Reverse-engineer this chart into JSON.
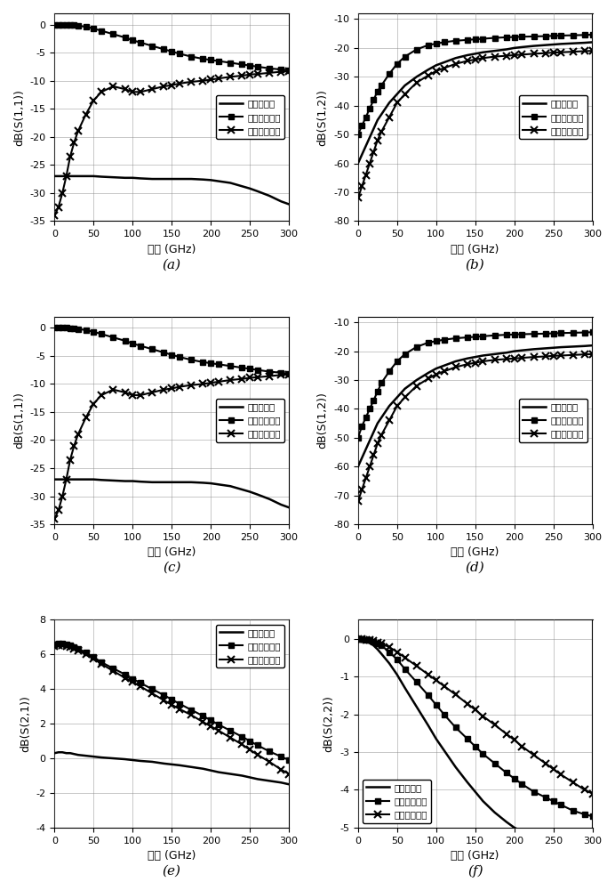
{
  "freq_dense": [
    0,
    5,
    10,
    15,
    20,
    25,
    30,
    40,
    50,
    60,
    75,
    90,
    100,
    110,
    125,
    140,
    150,
    160,
    175,
    190,
    200,
    210,
    225,
    240,
    250,
    260,
    275,
    290,
    300
  ],
  "panels": [
    {
      "ylabel": "dB(S(1,1))",
      "label": "(a)",
      "ylim": [
        -35,
        2
      ],
      "yticks": [
        0,
        -5,
        -10,
        -15,
        -20,
        -25,
        -30,
        -35
      ],
      "legend_loc": "center right",
      "lines": [
        {
          "name": "本专利结构",
          "marker": null,
          "y": [
            -27.0,
            -27.0,
            -27.0,
            -27.0,
            -27.0,
            -27.0,
            -27.0,
            -27.0,
            -27.0,
            -27.1,
            -27.2,
            -27.3,
            -27.3,
            -27.4,
            -27.5,
            -27.5,
            -27.5,
            -27.5,
            -27.5,
            -27.6,
            -27.7,
            -27.9,
            -28.2,
            -28.8,
            -29.2,
            -29.7,
            -30.5,
            -31.5,
            -32.0
          ]
        },
        {
          "name": "传统共射结构",
          "marker": "s",
          "y": [
            0.0,
            0.0,
            0.0,
            0.0,
            -0.05,
            -0.1,
            -0.2,
            -0.4,
            -0.7,
            -1.1,
            -1.7,
            -2.3,
            -2.8,
            -3.2,
            -3.8,
            -4.4,
            -4.8,
            -5.2,
            -5.7,
            -6.1,
            -6.3,
            -6.5,
            -6.8,
            -7.1,
            -7.3,
            -7.5,
            -7.8,
            -8.0,
            -8.2
          ]
        },
        {
          "name": "传统共基结构",
          "marker": "x",
          "y": [
            -34.0,
            -32.5,
            -30.0,
            -27.0,
            -23.5,
            -21.0,
            -19.0,
            -16.0,
            -13.5,
            -12.0,
            -11.0,
            -11.5,
            -12.0,
            -12.0,
            -11.5,
            -11.0,
            -10.8,
            -10.5,
            -10.2,
            -10.0,
            -9.8,
            -9.6,
            -9.3,
            -9.1,
            -8.9,
            -8.8,
            -8.6,
            -8.4,
            -8.3
          ]
        }
      ]
    },
    {
      "ylabel": "dB(S(1,2))",
      "label": "(b)",
      "ylim": [
        -80,
        -8
      ],
      "yticks": [
        -10,
        -20,
        -30,
        -40,
        -50,
        -60,
        -70,
        -80
      ],
      "legend_loc": "center right",
      "lines": [
        {
          "name": "本专利结构",
          "marker": null,
          "y": [
            -60,
            -57,
            -54,
            -51,
            -48,
            -45,
            -43,
            -39,
            -36,
            -33,
            -30,
            -27.5,
            -26,
            -25,
            -23.5,
            -22.5,
            -22,
            -21.5,
            -21,
            -20.5,
            -20,
            -19.7,
            -19.3,
            -19.0,
            -18.8,
            -18.6,
            -18.4,
            -18.2,
            -18.0
          ]
        },
        {
          "name": "传统共射结构",
          "marker": "s",
          "y": [
            -50,
            -47,
            -44,
            -41,
            -38,
            -35,
            -33,
            -29,
            -25.5,
            -23,
            -20.5,
            -19,
            -18.5,
            -18,
            -17.5,
            -17.2,
            -17,
            -16.8,
            -16.5,
            -16.3,
            -16.2,
            -16.1,
            -16.0,
            -15.9,
            -15.8,
            -15.7,
            -15.6,
            -15.5,
            -15.4
          ]
        },
        {
          "name": "传统共基结构",
          "marker": "x",
          "y": [
            -72,
            -68,
            -64,
            -60,
            -56,
            -52,
            -49,
            -44,
            -39,
            -36,
            -32,
            -29.5,
            -28,
            -27,
            -25.5,
            -24.5,
            -24,
            -23.5,
            -23.0,
            -22.7,
            -22.5,
            -22.3,
            -22.0,
            -21.8,
            -21.6,
            -21.5,
            -21.3,
            -21.1,
            -21.0
          ]
        }
      ]
    },
    {
      "ylabel": "dB(S(1,1))",
      "label": "(c)",
      "ylim": [
        -35,
        2
      ],
      "yticks": [
        0,
        -5,
        -10,
        -15,
        -20,
        -25,
        -30,
        -35
      ],
      "legend_loc": "center right",
      "lines": [
        {
          "name": "本专利结构",
          "marker": null,
          "y": [
            -27.0,
            -27.0,
            -27.0,
            -27.0,
            -27.0,
            -27.0,
            -27.0,
            -27.0,
            -27.0,
            -27.1,
            -27.2,
            -27.3,
            -27.3,
            -27.4,
            -27.5,
            -27.5,
            -27.5,
            -27.5,
            -27.5,
            -27.6,
            -27.7,
            -27.9,
            -28.2,
            -28.8,
            -29.2,
            -29.7,
            -30.5,
            -31.5,
            -32.0
          ]
        },
        {
          "name": "传统共射结构",
          "marker": "s",
          "y": [
            0.0,
            0.0,
            0.0,
            0.0,
            -0.05,
            -0.1,
            -0.2,
            -0.4,
            -0.7,
            -1.1,
            -1.7,
            -2.3,
            -2.8,
            -3.2,
            -3.8,
            -4.4,
            -4.8,
            -5.2,
            -5.7,
            -6.1,
            -6.3,
            -6.5,
            -6.8,
            -7.1,
            -7.3,
            -7.5,
            -7.8,
            -8.0,
            -8.2
          ]
        },
        {
          "name": "传统共基结构",
          "marker": "x",
          "y": [
            -34.0,
            -32.5,
            -30.0,
            -27.0,
            -23.5,
            -21.0,
            -19.0,
            -16.0,
            -13.5,
            -12.0,
            -11.0,
            -11.5,
            -12.0,
            -12.0,
            -11.5,
            -11.0,
            -10.8,
            -10.5,
            -10.2,
            -10.0,
            -9.8,
            -9.6,
            -9.3,
            -9.1,
            -8.9,
            -8.8,
            -8.6,
            -8.4,
            -8.3
          ]
        }
      ]
    },
    {
      "ylabel": "dB(S(1,2))",
      "label": "(d)",
      "ylim": [
        -80,
        -8
      ],
      "yticks": [
        -10,
        -20,
        -30,
        -40,
        -50,
        -60,
        -70,
        -80
      ],
      "legend_loc": "center right",
      "lines": [
        {
          "name": "本专利结构",
          "marker": null,
          "y": [
            -60,
            -57,
            -54,
            -51,
            -48,
            -45,
            -43,
            -39,
            -36,
            -33,
            -30,
            -27.5,
            -26,
            -25,
            -23.5,
            -22.5,
            -22,
            -21.5,
            -21,
            -20.5,
            -20,
            -19.7,
            -19.3,
            -19.0,
            -18.8,
            -18.6,
            -18.4,
            -18.2,
            -18.0
          ]
        },
        {
          "name": "传统共射结构",
          "marker": "s",
          "y": [
            -50,
            -46,
            -43,
            -40,
            -37,
            -34,
            -31,
            -27,
            -23.5,
            -21,
            -18.5,
            -17,
            -16.5,
            -16,
            -15.5,
            -15.2,
            -15.0,
            -14.8,
            -14.5,
            -14.3,
            -14.2,
            -14.1,
            -14.0,
            -13.9,
            -13.8,
            -13.7,
            -13.6,
            -13.5,
            -13.4
          ]
        },
        {
          "name": "传统共基结构",
          "marker": "x",
          "y": [
            -72,
            -68,
            -64,
            -60,
            -56,
            -52,
            -49,
            -44,
            -39,
            -36,
            -32,
            -29.5,
            -28,
            -27,
            -25.5,
            -24.5,
            -24,
            -23.5,
            -23.0,
            -22.7,
            -22.5,
            -22.3,
            -22.0,
            -21.8,
            -21.6,
            -21.5,
            -21.3,
            -21.1,
            -21.0
          ]
        }
      ]
    },
    {
      "ylabel": "dB(S(2,1))",
      "label": "(e)",
      "ylim": [
        -4,
        8
      ],
      "yticks": [
        -4,
        -2,
        0,
        2,
        4,
        6,
        8
      ],
      "legend_loc": "upper right",
      "lines": [
        {
          "name": "本专利结构",
          "marker": null,
          "y": [
            0.3,
            0.35,
            0.35,
            0.3,
            0.3,
            0.25,
            0.2,
            0.15,
            0.1,
            0.05,
            0.0,
            -0.05,
            -0.1,
            -0.15,
            -0.2,
            -0.3,
            -0.35,
            -0.4,
            -0.5,
            -0.6,
            -0.7,
            -0.8,
            -0.9,
            -1.0,
            -1.1,
            -1.2,
            -1.3,
            -1.4,
            -1.5
          ]
        },
        {
          "name": "传统共射结构",
          "marker": "s",
          "y": [
            6.6,
            6.65,
            6.65,
            6.6,
            6.55,
            6.45,
            6.35,
            6.1,
            5.85,
            5.55,
            5.2,
            4.85,
            4.6,
            4.35,
            4.0,
            3.65,
            3.4,
            3.15,
            2.8,
            2.45,
            2.2,
            1.95,
            1.6,
            1.25,
            1.0,
            0.75,
            0.4,
            0.1,
            -0.1
          ]
        },
        {
          "name": "传统共基结构",
          "marker": "x",
          "y": [
            6.5,
            6.55,
            6.55,
            6.5,
            6.45,
            6.35,
            6.25,
            6.0,
            5.75,
            5.45,
            5.05,
            4.65,
            4.4,
            4.15,
            3.75,
            3.35,
            3.1,
            2.85,
            2.5,
            2.1,
            1.85,
            1.6,
            1.2,
            0.8,
            0.5,
            0.2,
            -0.2,
            -0.65,
            -0.9
          ]
        }
      ]
    },
    {
      "ylabel": "dB(S(2,2))",
      "label": "(f)",
      "ylim": [
        -5,
        0.5
      ],
      "yticks": [
        0,
        -1,
        -2,
        -3,
        -4,
        -5
      ],
      "legend_loc": "lower left",
      "lines": [
        {
          "name": "本专利结构",
          "marker": null,
          "y": [
            0.0,
            -0.02,
            -0.05,
            -0.1,
            -0.18,
            -0.28,
            -0.4,
            -0.65,
            -0.95,
            -1.3,
            -1.8,
            -2.3,
            -2.65,
            -2.95,
            -3.4,
            -3.8,
            -4.05,
            -4.3,
            -4.6,
            -4.85,
            -5.0,
            -5.1,
            -5.2,
            -5.3,
            -5.35,
            -5.4,
            -5.45,
            -5.48,
            -5.5
          ]
        },
        {
          "name": "传统共射结构",
          "marker": "s",
          "y": [
            0.0,
            -0.01,
            -0.02,
            -0.04,
            -0.07,
            -0.12,
            -0.18,
            -0.35,
            -0.55,
            -0.8,
            -1.15,
            -1.5,
            -1.75,
            -2.0,
            -2.35,
            -2.65,
            -2.85,
            -3.05,
            -3.3,
            -3.55,
            -3.7,
            -3.85,
            -4.05,
            -4.2,
            -4.3,
            -4.4,
            -4.55,
            -4.65,
            -4.7
          ]
        },
        {
          "name": "传统共基结构",
          "marker": "x",
          "y": [
            0.0,
            -0.01,
            -0.02,
            -0.03,
            -0.06,
            -0.09,
            -0.13,
            -0.22,
            -0.35,
            -0.5,
            -0.72,
            -0.95,
            -1.1,
            -1.25,
            -1.48,
            -1.72,
            -1.88,
            -2.05,
            -2.28,
            -2.52,
            -2.68,
            -2.85,
            -3.08,
            -3.3,
            -3.45,
            -3.6,
            -3.8,
            -4.0,
            -4.1
          ]
        }
      ]
    }
  ],
  "xlabel": "频率 (GHz)",
  "xlim": [
    0,
    300
  ],
  "xticks": [
    0,
    50,
    100,
    150,
    200,
    250,
    300
  ],
  "legend_names": [
    "本专利结构",
    "传统共射结构",
    "传统共基结构"
  ]
}
